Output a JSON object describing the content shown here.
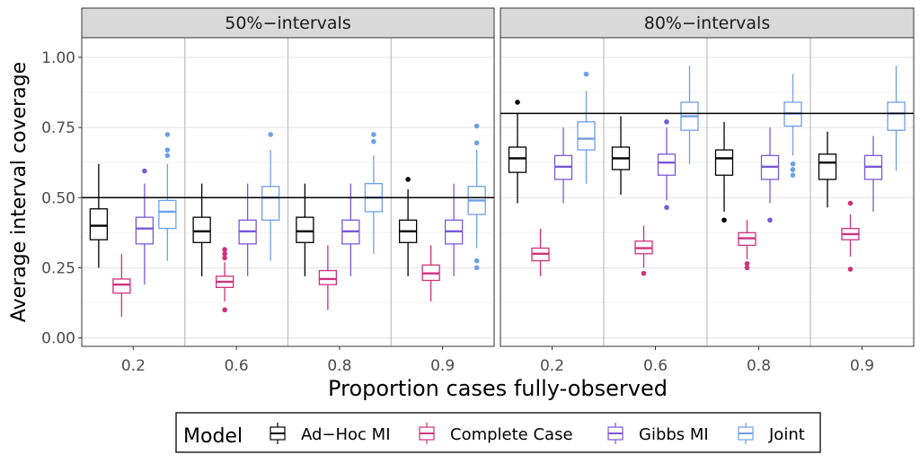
{
  "chart_data": {
    "type": "boxplot",
    "ylabel": "Average interval coverage",
    "xlabel": "Proportion cases fully-observed",
    "ylim": [
      -0.03,
      1.07
    ],
    "yticks": [
      "0.00",
      "0.25",
      "0.50",
      "0.75",
      "1.00"
    ],
    "yticks_values": [
      0,
      0.25,
      0.5,
      0.75,
      1.0
    ],
    "categories": [
      "0.2",
      "0.6",
      "0.8",
      "0.9"
    ],
    "grid": "on",
    "legend_placement": "bottom",
    "legend": {
      "title": "Model",
      "entries": [
        "Ad−Hoc MI",
        "Complete Case",
        "Gibbs MI",
        "Joint"
      ]
    },
    "series_colors": {
      "Ad−Hoc MI": "#000000",
      "Complete Case": "#d0307e",
      "Gibbs MI": "#7b57d8",
      "Joint": "#6f9fe8"
    },
    "panels": [
      {
        "title": "50%−intervals",
        "reference_line": 0.5,
        "groups": [
          {
            "x": "0.2",
            "boxes": [
              {
                "series": "Ad−Hoc MI",
                "whisker_low": 0.25,
                "q1": 0.35,
                "median": 0.4,
                "q3": 0.46,
                "whisker_high": 0.62,
                "outliers": []
              },
              {
                "series": "Complete Case",
                "whisker_low": 0.075,
                "q1": 0.16,
                "median": 0.19,
                "q3": 0.21,
                "whisker_high": 0.3,
                "outliers": []
              },
              {
                "series": "Gibbs MI",
                "whisker_low": 0.19,
                "q1": 0.335,
                "median": 0.39,
                "q3": 0.43,
                "whisker_high": 0.55,
                "outliers": [
                  0.595
                ]
              },
              {
                "series": "Joint",
                "whisker_low": 0.275,
                "q1": 0.39,
                "median": 0.45,
                "q3": 0.49,
                "whisker_high": 0.62,
                "outliers": [
                  0.65,
                  0.67,
                  0.725
                ]
              }
            ]
          },
          {
            "x": "0.6",
            "boxes": [
              {
                "series": "Ad−Hoc MI",
                "whisker_low": 0.22,
                "q1": 0.34,
                "median": 0.38,
                "q3": 0.43,
                "whisker_high": 0.55,
                "outliers": []
              },
              {
                "series": "Complete Case",
                "whisker_low": 0.13,
                "q1": 0.18,
                "median": 0.2,
                "q3": 0.22,
                "whisker_high": 0.27,
                "outliers": [
                  0.1,
                  0.285,
                  0.3,
                  0.315
                ]
              },
              {
                "series": "Gibbs MI",
                "whisker_low": 0.22,
                "q1": 0.335,
                "median": 0.38,
                "q3": 0.42,
                "whisker_high": 0.55,
                "outliers": []
              },
              {
                "series": "Joint",
                "whisker_low": 0.275,
                "q1": 0.42,
                "median": 0.5,
                "q3": 0.54,
                "whisker_high": 0.67,
                "outliers": [
                  0.725
                ]
              }
            ]
          },
          {
            "x": "0.8",
            "boxes": [
              {
                "series": "Ad−Hoc MI",
                "whisker_low": 0.22,
                "q1": 0.34,
                "median": 0.38,
                "q3": 0.43,
                "whisker_high": 0.55,
                "outliers": []
              },
              {
                "series": "Complete Case",
                "whisker_low": 0.1,
                "q1": 0.19,
                "median": 0.21,
                "q3": 0.24,
                "whisker_high": 0.33,
                "outliers": []
              },
              {
                "series": "Gibbs MI",
                "whisker_low": 0.22,
                "q1": 0.335,
                "median": 0.38,
                "q3": 0.42,
                "whisker_high": 0.55,
                "outliers": []
              },
              {
                "series": "Joint",
                "whisker_low": 0.3,
                "q1": 0.45,
                "median": 0.5,
                "q3": 0.55,
                "whisker_high": 0.65,
                "outliers": [
                  0.7,
                  0.725
                ]
              }
            ]
          },
          {
            "x": "0.9",
            "boxes": [
              {
                "series": "Ad−Hoc MI",
                "whisker_low": 0.22,
                "q1": 0.34,
                "median": 0.38,
                "q3": 0.42,
                "whisker_high": 0.53,
                "outliers": [
                  0.565
                ]
              },
              {
                "series": "Complete Case",
                "whisker_low": 0.13,
                "q1": 0.205,
                "median": 0.23,
                "q3": 0.26,
                "whisker_high": 0.33,
                "outliers": []
              },
              {
                "series": "Gibbs MI",
                "whisker_low": 0.22,
                "q1": 0.335,
                "median": 0.38,
                "q3": 0.42,
                "whisker_high": 0.55,
                "outliers": []
              },
              {
                "series": "Joint",
                "whisker_low": 0.32,
                "q1": 0.44,
                "median": 0.49,
                "q3": 0.54,
                "whisker_high": 0.67,
                "outliers": [
                  0.25,
                  0.275,
                  0.695,
                  0.755
                ]
              }
            ]
          }
        ]
      },
      {
        "title": "80%−intervals",
        "reference_line": 0.8,
        "groups": [
          {
            "x": "0.2",
            "boxes": [
              {
                "series": "Ad−Hoc MI",
                "whisker_low": 0.48,
                "q1": 0.59,
                "median": 0.64,
                "q3": 0.68,
                "whisker_high": 0.8,
                "outliers": [
                  0.84
                ]
              },
              {
                "series": "Complete Case",
                "whisker_low": 0.22,
                "q1": 0.275,
                "median": 0.3,
                "q3": 0.32,
                "whisker_high": 0.39,
                "outliers": []
              },
              {
                "series": "Gibbs MI",
                "whisker_low": 0.48,
                "q1": 0.565,
                "median": 0.61,
                "q3": 0.65,
                "whisker_high": 0.75,
                "outliers": []
              },
              {
                "series": "Joint",
                "whisker_low": 0.55,
                "q1": 0.67,
                "median": 0.71,
                "q3": 0.77,
                "whisker_high": 0.88,
                "outliers": [
                  0.94
                ]
              }
            ]
          },
          {
            "x": "0.6",
            "boxes": [
              {
                "series": "Ad−Hoc MI",
                "whisker_low": 0.51,
                "q1": 0.6,
                "median": 0.64,
                "q3": 0.68,
                "whisker_high": 0.79,
                "outliers": []
              },
              {
                "series": "Complete Case",
                "whisker_low": 0.25,
                "q1": 0.3,
                "median": 0.32,
                "q3": 0.345,
                "whisker_high": 0.4,
                "outliers": [
                  0.23
                ]
              },
              {
                "series": "Gibbs MI",
                "whisker_low": 0.49,
                "q1": 0.58,
                "median": 0.625,
                "q3": 0.655,
                "whisker_high": 0.75,
                "outliers": [
                  0.465,
                  0.77
                ]
              },
              {
                "series": "Joint",
                "whisker_low": 0.62,
                "q1": 0.74,
                "median": 0.79,
                "q3": 0.84,
                "whisker_high": 0.97,
                "outliers": []
              }
            ]
          },
          {
            "x": "0.8",
            "boxes": [
              {
                "series": "Ad−Hoc MI",
                "whisker_low": 0.45,
                "q1": 0.58,
                "median": 0.64,
                "q3": 0.67,
                "whisker_high": 0.77,
                "outliers": [
                  0.42
                ]
              },
              {
                "series": "Complete Case",
                "whisker_low": 0.28,
                "q1": 0.33,
                "median": 0.355,
                "q3": 0.375,
                "whisker_high": 0.42,
                "outliers": [
                  0.25,
                  0.265
                ]
              },
              {
                "series": "Gibbs MI",
                "whisker_low": 0.48,
                "q1": 0.565,
                "median": 0.61,
                "q3": 0.65,
                "whisker_high": 0.75,
                "outliers": [
                  0.42
                ]
              },
              {
                "series": "Joint",
                "whisker_low": 0.65,
                "q1": 0.755,
                "median": 0.8,
                "q3": 0.84,
                "whisker_high": 0.94,
                "outliers": [
                  0.58,
                  0.6,
                  0.62
                ]
              }
            ]
          },
          {
            "x": "0.9",
            "boxes": [
              {
                "series": "Ad−Hoc MI",
                "whisker_low": 0.465,
                "q1": 0.565,
                "median": 0.625,
                "q3": 0.655,
                "whisker_high": 0.735,
                "outliers": []
              },
              {
                "series": "Complete Case",
                "whisker_low": 0.29,
                "q1": 0.35,
                "median": 0.37,
                "q3": 0.39,
                "whisker_high": 0.44,
                "outliers": [
                  0.245,
                  0.48
                ]
              },
              {
                "series": "Gibbs MI",
                "whisker_low": 0.45,
                "q1": 0.565,
                "median": 0.61,
                "q3": 0.65,
                "whisker_high": 0.72,
                "outliers": []
              },
              {
                "series": "Joint",
                "whisker_low": 0.595,
                "q1": 0.74,
                "median": 0.8,
                "q3": 0.84,
                "whisker_high": 0.97,
                "outliers": []
              }
            ]
          }
        ]
      }
    ]
  }
}
